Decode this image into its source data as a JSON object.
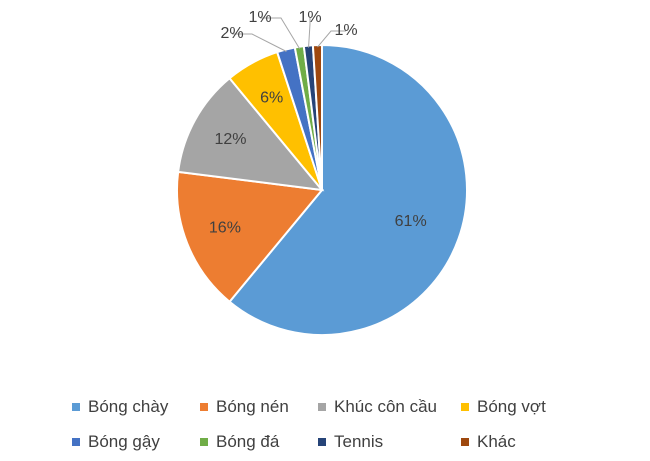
{
  "chart_data": {
    "type": "pie",
    "title": "",
    "categories": [
      "Bóng chày",
      "Bóng nén",
      "Khúc côn cầu",
      "Bóng vợt",
      "Bóng gậy",
      "Bóng đá",
      "Tennis",
      "Khác"
    ],
    "values": [
      61,
      16,
      12,
      6,
      2,
      1,
      1,
      1
    ],
    "data_labels": [
      "61%",
      "16%",
      "12%",
      "6%",
      "2%",
      "1%",
      "1%",
      "1%"
    ],
    "colors": [
      "#5B9BD5",
      "#ED7D31",
      "#A5A5A5",
      "#FFC000",
      "#4472C4",
      "#70AD47",
      "#264478",
      "#9E480E"
    ],
    "legend_position": "bottom",
    "start_angle_deg": 0,
    "direction": "clockwise"
  }
}
